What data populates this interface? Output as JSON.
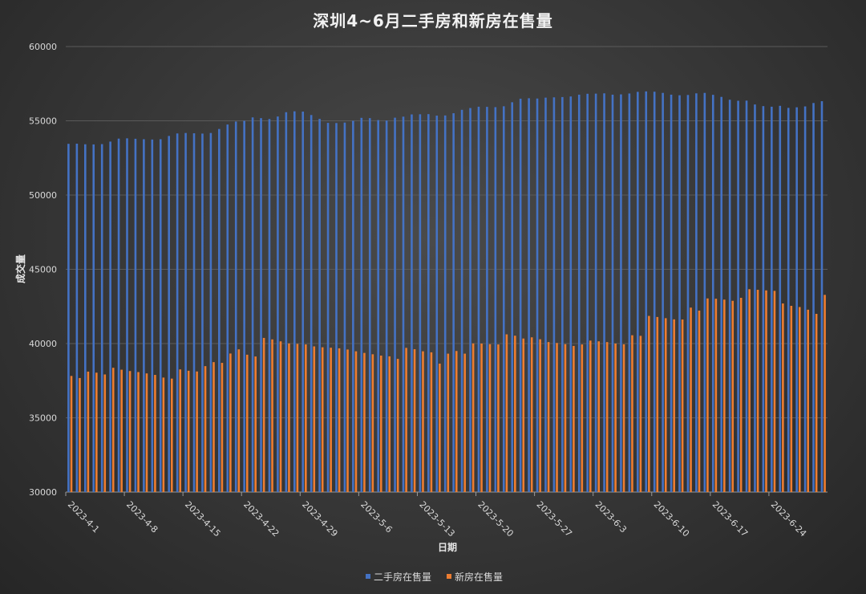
{
  "chart_data": {
    "type": "bar",
    "title": "深圳4~6月二手房和新房在售量",
    "xlabel": "日期",
    "ylabel": "成交量",
    "ylim": [
      30000,
      60000
    ],
    "yticks": [
      "30000",
      "35000",
      "40000",
      "45000",
      "50000",
      "55000",
      "60000"
    ],
    "grid": true,
    "legend_position": "bottom",
    "x_tick_labels": [
      "2023-4-1",
      "2023-4-8",
      "2023-4-15",
      "2023-4-22",
      "2023-4-29",
      "2023-5-6",
      "2023-5-13",
      "2023-5-20",
      "2023-5-27",
      "2023-6-3",
      "2023-6-10",
      "2023-6-17",
      "2023-6-24"
    ],
    "series": [
      {
        "name": "二手房在售量",
        "color": "#4472C4",
        "values": [
          53450,
          53460,
          53420,
          53410,
          53430,
          53600,
          53800,
          53820,
          53790,
          53760,
          53740,
          53760,
          53980,
          54150,
          54180,
          54160,
          54140,
          54180,
          54450,
          54750,
          54950,
          55000,
          55230,
          55180,
          55120,
          55290,
          55580,
          55640,
          55620,
          55390,
          55130,
          54860,
          54850,
          54880,
          55000,
          55200,
          55180,
          55050,
          55020,
          55210,
          55280,
          55430,
          55440,
          55450,
          55350,
          55360,
          55510,
          55740,
          55860,
          55950,
          55940,
          55920,
          55980,
          56250,
          56490,
          56520,
          56500,
          56560,
          56580,
          56600,
          56640,
          56760,
          56820,
          56830,
          56850,
          56760,
          56780,
          56840,
          56950,
          56980,
          56960,
          56880,
          56760,
          56720,
          56740,
          56850,
          56880,
          56750,
          56610,
          56420,
          56350,
          56360,
          56100,
          55990,
          55950,
          56010,
          55870,
          55910,
          55970,
          56200,
          56320
        ]
      },
      {
        "name": "新房在售量",
        "color": "#ED7D31",
        "values": [
          37820,
          37680,
          38110,
          38040,
          37920,
          38370,
          38240,
          38150,
          38080,
          37990,
          37890,
          37710,
          37640,
          38260,
          38170,
          38120,
          38480,
          38750,
          38700,
          39330,
          39610,
          39250,
          39130,
          40380,
          40280,
          40150,
          40010,
          39980,
          39940,
          39810,
          39750,
          39720,
          39680,
          39600,
          39480,
          39370,
          39280,
          39190,
          39140,
          38970,
          39710,
          39620,
          39480,
          39410,
          38650,
          39320,
          39500,
          39320,
          40010,
          40000,
          39960,
          39940,
          40620,
          40530,
          40340,
          40420,
          40290,
          40100,
          40040,
          39960,
          39840,
          39940,
          40200,
          40150,
          40100,
          40000,
          39950,
          40560,
          40520,
          41860,
          41790,
          41710,
          41630,
          41620,
          42420,
          42220,
          43040,
          43020,
          42960,
          42880,
          43080,
          43660,
          43620,
          43580,
          43550,
          42700,
          42540,
          42460,
          42280,
          42000,
          43280
        ]
      }
    ]
  }
}
